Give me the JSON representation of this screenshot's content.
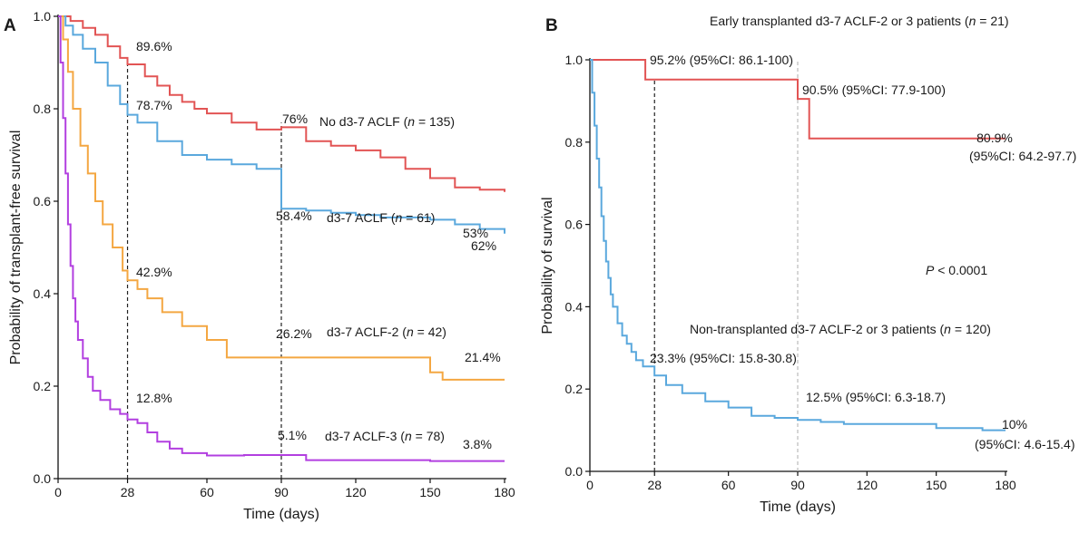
{
  "chart_data": [
    {
      "panel": "A",
      "type": "line",
      "subtype": "kaplan-meier",
      "title": "",
      "xlabel": "Time (days)",
      "ylabel": "Probability of transplant-free survival",
      "xlim": [
        0,
        180
      ],
      "ylim": [
        0,
        1
      ],
      "xticks": [
        "0",
        "28",
        "60",
        "90",
        "120",
        "150",
        "180"
      ],
      "yticks": [
        "0.0",
        "0.2",
        "0.4",
        "0.6",
        "0.8",
        "1.0"
      ],
      "reference_lines_x": [
        28,
        90
      ],
      "series": [
        {
          "name": "No d3-7 ACLF",
          "n_label": "(n = 135)",
          "color": "#e25454",
          "points": [
            [
              0,
              1
            ],
            [
              5,
              0.99
            ],
            [
              10,
              0.975
            ],
            [
              15,
              0.96
            ],
            [
              20,
              0.935
            ],
            [
              25,
              0.91
            ],
            [
              28,
              0.896
            ],
            [
              35,
              0.87
            ],
            [
              40,
              0.85
            ],
            [
              45,
              0.83
            ],
            [
              50,
              0.815
            ],
            [
              55,
              0.8
            ],
            [
              60,
              0.79
            ],
            [
              70,
              0.77
            ],
            [
              80,
              0.755
            ],
            [
              90,
              0.76
            ],
            [
              100,
              0.73
            ],
            [
              110,
              0.72
            ],
            [
              120,
              0.71
            ],
            [
              130,
              0.695
            ],
            [
              140,
              0.67
            ],
            [
              150,
              0.65
            ],
            [
              160,
              0.63
            ],
            [
              170,
              0.625
            ],
            [
              180,
              0.62
            ]
          ],
          "annotations": [
            [
              "89.6%"
            ],
            [
              "76%"
            ],
            [
              "62%"
            ]
          ]
        },
        {
          "name": "d3-7 ACLF",
          "n_label": "(n = 61)",
          "color": "#5aa8dd",
          "points": [
            [
              0,
              1
            ],
            [
              3,
              0.98
            ],
            [
              6,
              0.96
            ],
            [
              10,
              0.93
            ],
            [
              15,
              0.9
            ],
            [
              20,
              0.85
            ],
            [
              25,
              0.81
            ],
            [
              28,
              0.787
            ],
            [
              32,
              0.77
            ],
            [
              40,
              0.73
            ],
            [
              50,
              0.7
            ],
            [
              60,
              0.69
            ],
            [
              70,
              0.68
            ],
            [
              80,
              0.67
            ],
            [
              90,
              0.584
            ],
            [
              100,
              0.58
            ],
            [
              110,
              0.575
            ],
            [
              120,
              0.57
            ],
            [
              130,
              0.565
            ],
            [
              150,
              0.56
            ],
            [
              160,
              0.55
            ],
            [
              170,
              0.54
            ],
            [
              180,
              0.53
            ]
          ],
          "annotations": [
            [
              "78.7%"
            ],
            [
              "58.4%"
            ],
            [
              "53%"
            ]
          ]
        },
        {
          "name": "d3-7 ACLF-2",
          "n_label": "(n = 42)",
          "color": "#f4a742",
          "points": [
            [
              0,
              1
            ],
            [
              2,
              0.95
            ],
            [
              4,
              0.88
            ],
            [
              6,
              0.8
            ],
            [
              9,
              0.72
            ],
            [
              12,
              0.66
            ],
            [
              15,
              0.6
            ],
            [
              18,
              0.55
            ],
            [
              22,
              0.5
            ],
            [
              26,
              0.45
            ],
            [
              28,
              0.429
            ],
            [
              32,
              0.41
            ],
            [
              36,
              0.39
            ],
            [
              42,
              0.36
            ],
            [
              50,
              0.33
            ],
            [
              60,
              0.3
            ],
            [
              68,
              0.262
            ],
            [
              90,
              0.262
            ],
            [
              100,
              0.262
            ],
            [
              120,
              0.262
            ],
            [
              150,
              0.23
            ],
            [
              155,
              0.214
            ],
            [
              180,
              0.214
            ]
          ],
          "annotations": [
            [
              "42.9%"
            ],
            [
              "26.2%"
            ],
            [
              "21.4%"
            ]
          ]
        },
        {
          "name": "d3-7 ACLF-3",
          "n_label": "(n = 78)",
          "color": "#b23fe0",
          "points": [
            [
              0,
              1
            ],
            [
              1,
              0.9
            ],
            [
              2,
              0.78
            ],
            [
              3,
              0.66
            ],
            [
              4,
              0.55
            ],
            [
              5,
              0.46
            ],
            [
              6,
              0.39
            ],
            [
              7,
              0.34
            ],
            [
              8,
              0.3
            ],
            [
              10,
              0.26
            ],
            [
              12,
              0.22
            ],
            [
              14,
              0.19
            ],
            [
              17,
              0.17
            ],
            [
              21,
              0.15
            ],
            [
              25,
              0.14
            ],
            [
              28,
              0.128
            ],
            [
              32,
              0.12
            ],
            [
              36,
              0.1
            ],
            [
              40,
              0.08
            ],
            [
              45,
              0.065
            ],
            [
              50,
              0.055
            ],
            [
              60,
              0.05
            ],
            [
              75,
              0.051
            ],
            [
              90,
              0.051
            ],
            [
              100,
              0.04
            ],
            [
              120,
              0.04
            ],
            [
              150,
              0.038
            ],
            [
              180,
              0.038
            ]
          ],
          "annotations": [
            [
              "12.8%"
            ],
            [
              "5.1%"
            ],
            [
              "3.8%"
            ]
          ]
        }
      ]
    },
    {
      "panel": "B",
      "type": "line",
      "subtype": "kaplan-meier",
      "title": "",
      "xlabel": "Time (days)",
      "ylabel": "Probability of survival",
      "xlim": [
        0,
        180
      ],
      "ylim": [
        0,
        1
      ],
      "xticks": [
        "0",
        "28",
        "60",
        "90",
        "120",
        "150",
        "180"
      ],
      "yticks": [
        "0.0",
        "0.2",
        "0.4",
        "0.6",
        "0.8",
        "1.0"
      ],
      "reference_lines_x": [
        28,
        90
      ],
      "p_value": "P < 0.0001",
      "series": [
        {
          "name": "Early transplanted d3-7 ACLF-2 or 3 patients",
          "n_label": "(n = 21)",
          "color": "#e25454",
          "points": [
            [
              0,
              1
            ],
            [
              24,
              1
            ],
            [
              24,
              0.952
            ],
            [
              90,
              0.952
            ],
            [
              90,
              0.905
            ],
            [
              95,
              0.905
            ],
            [
              95,
              0.809
            ],
            [
              180,
              0.809
            ]
          ],
          "annotations": [
            [
              "95.2% (95%CI: 86.1-100)"
            ],
            [
              "90.5% (95%CI: 77.9-100)"
            ],
            [
              "80.9%",
              "(95%CI: 64.2-97.7)"
            ]
          ]
        },
        {
          "name": "Non-transplanted d3-7 ACLF-2 or 3 patients",
          "n_label": "(n = 120)",
          "color": "#5aa8dd",
          "points": [
            [
              0,
              1
            ],
            [
              1,
              0.92
            ],
            [
              2,
              0.84
            ],
            [
              3,
              0.76
            ],
            [
              4,
              0.69
            ],
            [
              5,
              0.62
            ],
            [
              6,
              0.56
            ],
            [
              7,
              0.51
            ],
            [
              8,
              0.47
            ],
            [
              9,
              0.43
            ],
            [
              10,
              0.4
            ],
            [
              12,
              0.36
            ],
            [
              14,
              0.33
            ],
            [
              16,
              0.31
            ],
            [
              18,
              0.29
            ],
            [
              20,
              0.27
            ],
            [
              23,
              0.255
            ],
            [
              28,
              0.233
            ],
            [
              33,
              0.21
            ],
            [
              40,
              0.19
            ],
            [
              50,
              0.17
            ],
            [
              60,
              0.155
            ],
            [
              70,
              0.135
            ],
            [
              80,
              0.13
            ],
            [
              90,
              0.125
            ],
            [
              100,
              0.12
            ],
            [
              110,
              0.115
            ],
            [
              120,
              0.115
            ],
            [
              150,
              0.105
            ],
            [
              170,
              0.1
            ],
            [
              180,
              0.1
            ]
          ],
          "annotations": [
            [
              "23.3% (95%CI: 15.8-30.8)"
            ],
            [
              "12.5% (95%CI: 6.3-18.7)"
            ],
            [
              "10%",
              "(95%CI: 4.6-15.4)"
            ]
          ]
        }
      ]
    }
  ]
}
